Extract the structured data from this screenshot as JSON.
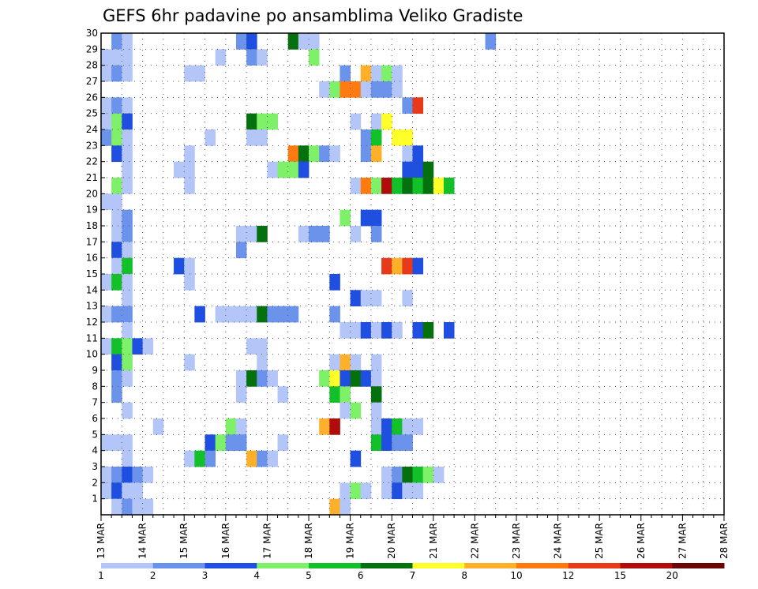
{
  "chart_data": {
    "type": "heatmap",
    "title": "GEFS 6hr padavine po ansamblima Veliko Gradiste",
    "xlabel": "",
    "ylabel": "",
    "x_ticks": [
      "13 MAR",
      "14 MAR",
      "15 MAR",
      "16 MAR",
      "17 MAR",
      "18 MAR",
      "19 MAR",
      "20 MAR",
      "21 MAR",
      "22 MAR",
      "23 MAR",
      "24 MAR",
      "25 MAR",
      "26 MAR",
      "27 MAR",
      "28 MAR"
    ],
    "y_ticks": [
      1,
      2,
      3,
      4,
      5,
      6,
      7,
      8,
      9,
      10,
      11,
      12,
      13,
      14,
      15,
      16,
      17,
      18,
      19,
      20,
      21,
      22,
      23,
      24,
      25,
      26,
      27,
      28,
      29,
      30
    ],
    "x_range": [
      0,
      60
    ],
    "y_range": [
      0,
      30
    ],
    "steps_per_day": 4,
    "grid": "dotted",
    "colorbar": {
      "labels": [
        "1",
        "2",
        "3",
        "4",
        "5",
        "6",
        "7",
        "8",
        "10",
        "12",
        "15",
        "20"
      ],
      "colors": [
        "#b3c6f7",
        "#6b93ec",
        "#1f4fe0",
        "#7ef06a",
        "#12c12a",
        "#04700e",
        "#ffff2a",
        "#ffb02a",
        "#ff7a10",
        "#e83a1a",
        "#b00c0c",
        "#6a0606"
      ]
    },
    "values": [
      [
        30,
        1,
        2
      ],
      [
        30,
        2,
        1
      ],
      [
        30,
        13,
        2
      ],
      [
        30,
        14,
        3
      ],
      [
        30,
        18,
        6
      ],
      [
        30,
        19,
        1
      ],
      [
        30,
        20,
        1
      ],
      [
        30,
        37,
        2
      ],
      [
        29,
        0,
        1
      ],
      [
        29,
        1,
        1
      ],
      [
        29,
        2,
        1
      ],
      [
        29,
        11,
        1
      ],
      [
        29,
        14,
        2
      ],
      [
        29,
        15,
        1
      ],
      [
        29,
        20,
        4
      ],
      [
        28,
        0,
        1
      ],
      [
        28,
        1,
        2
      ],
      [
        28,
        2,
        1
      ],
      [
        28,
        8,
        1
      ],
      [
        28,
        9,
        1
      ],
      [
        28,
        23,
        2
      ],
      [
        28,
        25,
        8
      ],
      [
        28,
        26,
        1
      ],
      [
        28,
        27,
        4
      ],
      [
        28,
        28,
        1
      ],
      [
        27,
        21,
        1
      ],
      [
        27,
        22,
        4
      ],
      [
        27,
        23,
        9
      ],
      [
        27,
        24,
        9
      ],
      [
        27,
        25,
        1
      ],
      [
        27,
        26,
        2
      ],
      [
        27,
        27,
        2
      ],
      [
        27,
        28,
        1
      ],
      [
        26,
        0,
        1
      ],
      [
        26,
        1,
        2
      ],
      [
        26,
        2,
        1
      ],
      [
        26,
        29,
        2
      ],
      [
        26,
        30,
        10
      ],
      [
        25,
        0,
        1
      ],
      [
        25,
        1,
        4
      ],
      [
        25,
        2,
        3
      ],
      [
        25,
        14,
        6
      ],
      [
        25,
        15,
        4
      ],
      [
        25,
        16,
        4
      ],
      [
        25,
        24,
        1
      ],
      [
        25,
        26,
        1
      ],
      [
        25,
        27,
        7
      ],
      [
        24,
        0,
        2
      ],
      [
        24,
        1,
        4
      ],
      [
        24,
        2,
        1
      ],
      [
        24,
        10,
        1
      ],
      [
        24,
        14,
        1
      ],
      [
        24,
        15,
        1
      ],
      [
        24,
        25,
        2
      ],
      [
        24,
        26,
        5
      ],
      [
        24,
        28,
        7
      ],
      [
        24,
        29,
        7
      ],
      [
        23,
        1,
        3
      ],
      [
        23,
        2,
        1
      ],
      [
        23,
        8,
        1
      ],
      [
        23,
        18,
        9
      ],
      [
        23,
        19,
        6
      ],
      [
        23,
        20,
        4
      ],
      [
        23,
        21,
        2
      ],
      [
        23,
        22,
        1
      ],
      [
        23,
        25,
        2
      ],
      [
        23,
        26,
        8
      ],
      [
        23,
        29,
        1
      ],
      [
        23,
        30,
        3
      ],
      [
        22,
        2,
        1
      ],
      [
        22,
        7,
        1
      ],
      [
        22,
        8,
        1
      ],
      [
        22,
        16,
        1
      ],
      [
        22,
        17,
        4
      ],
      [
        22,
        18,
        4
      ],
      [
        22,
        19,
        3
      ],
      [
        22,
        29,
        3
      ],
      [
        22,
        30,
        3
      ],
      [
        22,
        31,
        6
      ],
      [
        21,
        1,
        4
      ],
      [
        21,
        2,
        1
      ],
      [
        21,
        8,
        1
      ],
      [
        21,
        24,
        1
      ],
      [
        21,
        25,
        9
      ],
      [
        21,
        26,
        4
      ],
      [
        21,
        27,
        11
      ],
      [
        21,
        28,
        5
      ],
      [
        21,
        29,
        6
      ],
      [
        21,
        30,
        5
      ],
      [
        21,
        31,
        6
      ],
      [
        21,
        32,
        7
      ],
      [
        21,
        33,
        5
      ],
      [
        20,
        0,
        1
      ],
      [
        20,
        1,
        1
      ],
      [
        19,
        1,
        1
      ],
      [
        19,
        2,
        2
      ],
      [
        19,
        23,
        4
      ],
      [
        19,
        25,
        3
      ],
      [
        19,
        26,
        3
      ],
      [
        18,
        1,
        1
      ],
      [
        18,
        2,
        2
      ],
      [
        18,
        13,
        1
      ],
      [
        18,
        14,
        1
      ],
      [
        18,
        15,
        6
      ],
      [
        18,
        19,
        1
      ],
      [
        18,
        20,
        2
      ],
      [
        18,
        21,
        2
      ],
      [
        18,
        24,
        1
      ],
      [
        18,
        26,
        2
      ],
      [
        17,
        1,
        3
      ],
      [
        17,
        2,
        1
      ],
      [
        17,
        13,
        2
      ],
      [
        16,
        1,
        1
      ],
      [
        16,
        2,
        5
      ],
      [
        16,
        7,
        3
      ],
      [
        16,
        8,
        1
      ],
      [
        16,
        27,
        10
      ],
      [
        16,
        28,
        8
      ],
      [
        16,
        29,
        10
      ],
      [
        16,
        30,
        3
      ],
      [
        15,
        0,
        1
      ],
      [
        15,
        1,
        5
      ],
      [
        15,
        2,
        1
      ],
      [
        15,
        8,
        1
      ],
      [
        15,
        22,
        3
      ],
      [
        14,
        2,
        1
      ],
      [
        14,
        24,
        3
      ],
      [
        14,
        25,
        1
      ],
      [
        14,
        26,
        1
      ],
      [
        14,
        29,
        1
      ],
      [
        13,
        0,
        1
      ],
      [
        13,
        1,
        2
      ],
      [
        13,
        2,
        2
      ],
      [
        13,
        9,
        3
      ],
      [
        13,
        11,
        1
      ],
      [
        13,
        12,
        1
      ],
      [
        13,
        13,
        1
      ],
      [
        13,
        14,
        1
      ],
      [
        13,
        15,
        6
      ],
      [
        13,
        16,
        2
      ],
      [
        13,
        17,
        2
      ],
      [
        13,
        18,
        2
      ],
      [
        13,
        22,
        2
      ],
      [
        12,
        2,
        1
      ],
      [
        12,
        23,
        1
      ],
      [
        12,
        24,
        1
      ],
      [
        12,
        25,
        3
      ],
      [
        12,
        26,
        1
      ],
      [
        12,
        27,
        3
      ],
      [
        12,
        28,
        1
      ],
      [
        12,
        30,
        3
      ],
      [
        12,
        31,
        6
      ],
      [
        12,
        33,
        3
      ],
      [
        11,
        0,
        1
      ],
      [
        11,
        1,
        5
      ],
      [
        11,
        2,
        4
      ],
      [
        11,
        3,
        3
      ],
      [
        11,
        4,
        1
      ],
      [
        11,
        14,
        1
      ],
      [
        11,
        15,
        1
      ],
      [
        10,
        1,
        3
      ],
      [
        10,
        2,
        4
      ],
      [
        10,
        8,
        1
      ],
      [
        10,
        15,
        1
      ],
      [
        10,
        22,
        1
      ],
      [
        10,
        23,
        8
      ],
      [
        10,
        24,
        1
      ],
      [
        10,
        26,
        1
      ],
      [
        9,
        1,
        2
      ],
      [
        9,
        2,
        1
      ],
      [
        9,
        13,
        1
      ],
      [
        9,
        14,
        6
      ],
      [
        9,
        15,
        2
      ],
      [
        9,
        16,
        1
      ],
      [
        9,
        21,
        4
      ],
      [
        9,
        22,
        7
      ],
      [
        9,
        23,
        3
      ],
      [
        9,
        24,
        6
      ],
      [
        9,
        25,
        3
      ],
      [
        9,
        26,
        1
      ],
      [
        8,
        1,
        2
      ],
      [
        8,
        13,
        1
      ],
      [
        8,
        17,
        1
      ],
      [
        8,
        22,
        5
      ],
      [
        8,
        23,
        4
      ],
      [
        8,
        26,
        6
      ],
      [
        7,
        2,
        1
      ],
      [
        7,
        23,
        1
      ],
      [
        7,
        24,
        4
      ],
      [
        7,
        26,
        1
      ],
      [
        6,
        5,
        1
      ],
      [
        6,
        12,
        4
      ],
      [
        6,
        13,
        1
      ],
      [
        6,
        21,
        8
      ],
      [
        6,
        22,
        11
      ],
      [
        6,
        26,
        1
      ],
      [
        6,
        27,
        3
      ],
      [
        6,
        28,
        5
      ],
      [
        6,
        29,
        1
      ],
      [
        6,
        30,
        1
      ],
      [
        5,
        0,
        1
      ],
      [
        5,
        1,
        1
      ],
      [
        5,
        2,
        1
      ],
      [
        5,
        10,
        3
      ],
      [
        5,
        11,
        4
      ],
      [
        5,
        12,
        2
      ],
      [
        5,
        13,
        2
      ],
      [
        5,
        17,
        1
      ],
      [
        5,
        26,
        5
      ],
      [
        5,
        27,
        3
      ],
      [
        5,
        28,
        2
      ],
      [
        5,
        29,
        2
      ],
      [
        4,
        2,
        1
      ],
      [
        4,
        8,
        1
      ],
      [
        4,
        9,
        5
      ],
      [
        4,
        10,
        2
      ],
      [
        4,
        14,
        8
      ],
      [
        4,
        15,
        2
      ],
      [
        4,
        16,
        1
      ],
      [
        4,
        24,
        3
      ],
      [
        3,
        0,
        1
      ],
      [
        3,
        1,
        2
      ],
      [
        3,
        2,
        3
      ],
      [
        3,
        3,
        2
      ],
      [
        3,
        4,
        1
      ],
      [
        3,
        27,
        1
      ],
      [
        3,
        28,
        2
      ],
      [
        3,
        29,
        6
      ],
      [
        3,
        30,
        5
      ],
      [
        3,
        31,
        4
      ],
      [
        3,
        32,
        1
      ],
      [
        2,
        0,
        1
      ],
      [
        2,
        1,
        3
      ],
      [
        2,
        2,
        1
      ],
      [
        2,
        3,
        1
      ],
      [
        2,
        23,
        1
      ],
      [
        2,
        24,
        4
      ],
      [
        2,
        25,
        1
      ],
      [
        2,
        27,
        1
      ],
      [
        2,
        28,
        3
      ],
      [
        2,
        29,
        1
      ],
      [
        2,
        30,
        1
      ],
      [
        1,
        1,
        1
      ],
      [
        1,
        2,
        2
      ],
      [
        1,
        3,
        1
      ],
      [
        1,
        4,
        1
      ],
      [
        1,
        22,
        8
      ],
      [
        1,
        23,
        1
      ]
    ]
  }
}
